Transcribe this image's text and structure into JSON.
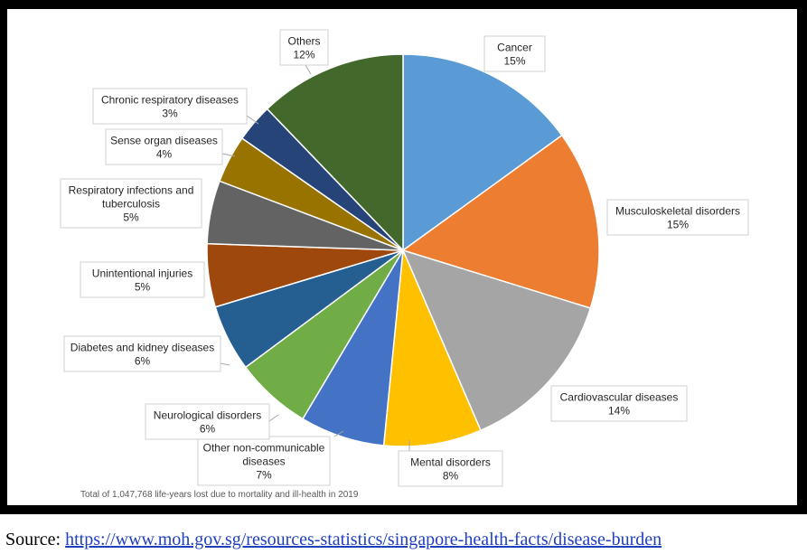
{
  "chart_data": {
    "type": "pie",
    "title": "",
    "start_angle_deg": 0,
    "direction": "clockwise",
    "slices": [
      {
        "label": "Cancer",
        "pct_label": "15%",
        "value": 15.3,
        "color": "#5b9bd5"
      },
      {
        "label": "Musculoskeletal disorders",
        "pct_label": "15%",
        "value": 15.0,
        "color": "#ed7d31"
      },
      {
        "label": "Cardiovascular diseases",
        "pct_label": "14%",
        "value": 14.0,
        "color": "#a5a5a5"
      },
      {
        "label": "Mental disorders",
        "pct_label": "8%",
        "value": 8.2,
        "color": "#ffc000"
      },
      {
        "label": "Other non-communicable diseases",
        "label_lines": [
          "Other non-communicable",
          "diseases"
        ],
        "pct_label": "7%",
        "value": 7.1,
        "color": "#4472c4"
      },
      {
        "label": "Neurological disorders",
        "pct_label": "6%",
        "value": 6.4,
        "color": "#70ad47"
      },
      {
        "label": "Diabetes and kidney diseases",
        "pct_label": "6%",
        "value": 5.6,
        "color": "#255e91"
      },
      {
        "label": "Unintentional injuries",
        "pct_label": "5%",
        "value": 5.3,
        "color": "#9e480e"
      },
      {
        "label": "Respiratory infections and tuberculosis",
        "label_lines": [
          "Respiratory infections and",
          "tuberculosis"
        ],
        "pct_label": "5%",
        "value": 5.3,
        "color": "#636363"
      },
      {
        "label": "Sense organ diseases",
        "pct_label": "4%",
        "value": 4.0,
        "color": "#997300"
      },
      {
        "label": "Chronic respiratory diseases",
        "pct_label": "3%",
        "value": 3.2,
        "color": "#264478"
      },
      {
        "label": "Others",
        "pct_label": "12%",
        "value": 12.4,
        "color": "#43682b"
      }
    ]
  },
  "footnote": "Total of 1,047,768 life-years lost due to mortality and ill-health in 2019",
  "source": {
    "prefix": "Source: ",
    "url_text": "https://www.moh.gov.sg/resources-statistics/singapore-health-facts/disease-burden"
  }
}
